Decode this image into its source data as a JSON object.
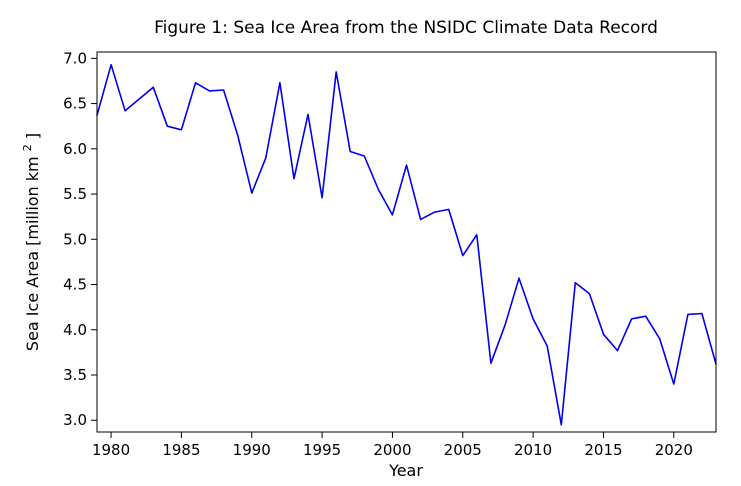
{
  "chart_data": {
    "type": "line",
    "title": "Figure 1: Sea Ice Area from the NSIDC Climate Data Record",
    "xlabel": "Year",
    "ylabel": "Sea Ice Area [million km²]",
    "ylabel_parts": {
      "pre": "Sea Ice Area [million km",
      "sup": "2",
      "post": "]"
    },
    "line_color": "#0000ee",
    "axis_color": "#000000",
    "background_color": "#ffffff",
    "grid": false,
    "legend": "none",
    "xlim": [
      1979,
      2023
    ],
    "ylim": [
      2.87,
      7.07
    ],
    "xticks": [
      1980,
      1985,
      1990,
      1995,
      2000,
      2005,
      2010,
      2015,
      2020
    ],
    "xtick_labels": [
      "1980",
      "1985",
      "1990",
      "1995",
      "2000",
      "2005",
      "2010",
      "2015",
      "2020"
    ],
    "yticks": [
      3.0,
      3.5,
      4.0,
      4.5,
      5.0,
      5.5,
      6.0,
      6.5,
      7.0
    ],
    "ytick_labels": [
      "3.0",
      "3.5",
      "4.0",
      "4.5",
      "5.0",
      "5.5",
      "6.0",
      "6.5",
      "7.0"
    ],
    "series": [
      {
        "name": "Sea Ice Area",
        "x": [
          1979,
          1980,
          1981,
          1982,
          1983,
          1984,
          1985,
          1986,
          1987,
          1988,
          1989,
          1990,
          1991,
          1992,
          1993,
          1994,
          1995,
          1996,
          1997,
          1998,
          1999,
          2000,
          2001,
          2002,
          2003,
          2004,
          2005,
          2006,
          2007,
          2008,
          2009,
          2010,
          2011,
          2012,
          2013,
          2014,
          2015,
          2016,
          2017,
          2018,
          2019,
          2020,
          2021,
          2022,
          2023
        ],
        "y": [
          6.37,
          6.93,
          6.42,
          6.55,
          6.68,
          6.25,
          6.21,
          6.73,
          6.64,
          6.65,
          6.15,
          5.51,
          5.9,
          6.73,
          5.67,
          6.38,
          5.46,
          6.85,
          5.97,
          5.92,
          5.55,
          5.27,
          5.82,
          5.22,
          5.3,
          5.33,
          4.82,
          5.05,
          3.63,
          4.05,
          4.57,
          4.12,
          3.82,
          2.95,
          4.52,
          4.4,
          3.95,
          3.77,
          4.12,
          4.15,
          3.9,
          3.4,
          4.17,
          4.18,
          3.62
        ]
      }
    ]
  }
}
